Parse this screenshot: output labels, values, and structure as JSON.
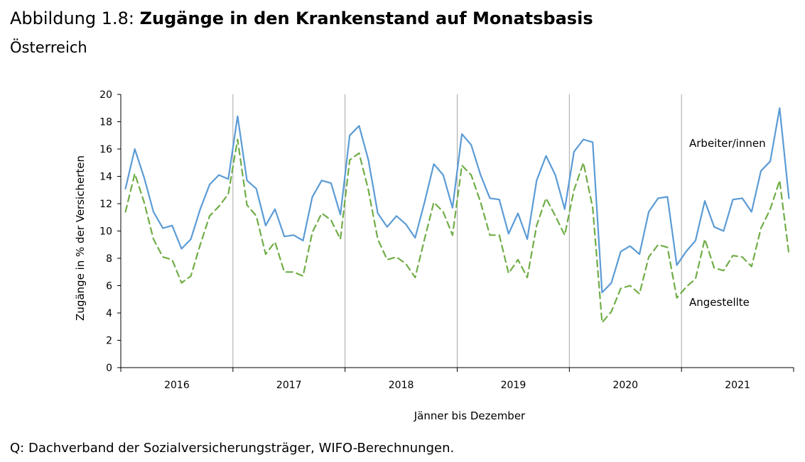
{
  "header": {
    "figure_prefix": "Abbildung 1.8:",
    "title": "Zugänge in den Krankenstand auf Monatsbasis",
    "subtitle": "Österreich"
  },
  "footer": {
    "source": "Q: Dachverband der Sozialversicherungsträger, WIFO-Berechnungen."
  },
  "chart_data": {
    "type": "line",
    "xlabel": "Jänner bis Dezember",
    "ylabel": "Zugänge in % der Versicherten",
    "ylim": [
      0,
      20
    ],
    "yticks": [
      "0",
      "2",
      "4",
      "6",
      "8",
      "10",
      "12",
      "14",
      "16",
      "18",
      "20"
    ],
    "years": [
      "2016",
      "2017",
      "2018",
      "2019",
      "2020",
      "2021"
    ],
    "months_per_year": 12,
    "grid": "vertical separators between years",
    "annotations": [
      "Arbeiter/innen",
      "Angestellte"
    ],
    "series": [
      {
        "name": "Arbeiter/innen",
        "color": "#5B9BD5",
        "style": "solid",
        "values": [
          13.1,
          16.0,
          13.9,
          11.4,
          10.2,
          10.4,
          8.7,
          9.4,
          11.6,
          13.4,
          14.1,
          13.8,
          18.4,
          13.7,
          13.1,
          10.4,
          11.6,
          9.6,
          9.7,
          9.3,
          12.5,
          13.7,
          13.5,
          11.2,
          17.0,
          17.7,
          15.2,
          11.3,
          10.3,
          11.1,
          10.5,
          9.5,
          12.1,
          14.9,
          14.1,
          11.7,
          17.1,
          16.3,
          14.1,
          12.4,
          12.3,
          9.8,
          11.3,
          9.4,
          13.7,
          15.5,
          14.1,
          11.6,
          15.8,
          16.7,
          16.5,
          5.5,
          6.2,
          8.5,
          8.9,
          8.3,
          11.4,
          12.4,
          12.5,
          7.5,
          8.5,
          9.3,
          12.2,
          10.3,
          10.0,
          12.3,
          12.4,
          11.4,
          14.4,
          15.1,
          19.0,
          12.4
        ]
      },
      {
        "name": "Angestellte",
        "color": "#70AD47",
        "style": "dashed",
        "values": [
          11.4,
          14.2,
          12.1,
          9.4,
          8.1,
          7.9,
          6.2,
          6.7,
          9.0,
          11.1,
          11.8,
          12.7,
          16.7,
          11.9,
          11.1,
          8.3,
          9.2,
          7.0,
          7.0,
          6.7,
          9.9,
          11.3,
          10.8,
          9.4,
          15.2,
          15.7,
          13.0,
          9.4,
          7.9,
          8.1,
          7.6,
          6.6,
          9.4,
          12.1,
          11.4,
          9.7,
          14.8,
          14.1,
          12.1,
          9.7,
          9.7,
          6.9,
          7.9,
          6.6,
          10.4,
          12.4,
          11.1,
          9.7,
          13.0,
          15.0,
          11.7,
          3.3,
          4.1,
          5.8,
          6.0,
          5.4,
          8.1,
          9.0,
          8.8,
          5.1,
          5.9,
          6.5,
          9.4,
          7.3,
          7.1,
          8.2,
          8.1,
          7.4,
          10.2,
          11.6,
          13.7,
          8.3
        ]
      }
    ]
  }
}
